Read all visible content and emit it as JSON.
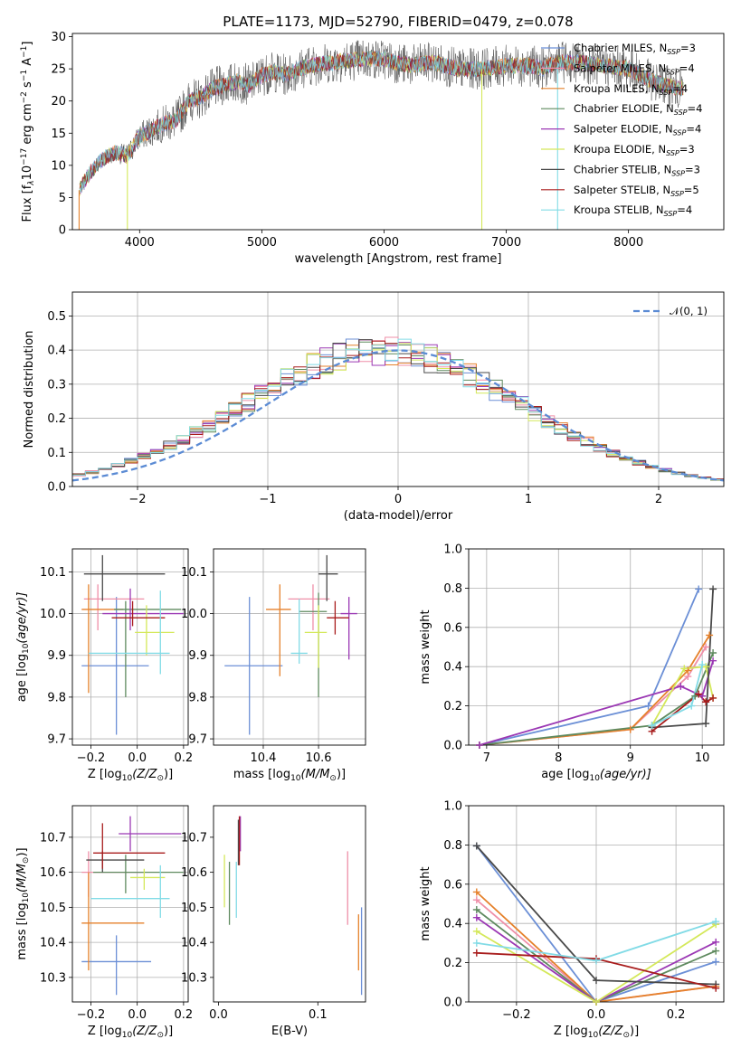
{
  "title": "PLATE=1173, MJD=52790, FIBERID=0479, z=0.078",
  "models": [
    {
      "name": "Chabrier MILES, N",
      "nssp": "=3",
      "color": "#6b8fd6"
    },
    {
      "name": "Salpeter MILES, N",
      "nssp": "=4",
      "color": "#ef8fa8"
    },
    {
      "name": "Kroupa MILES, N",
      "nssp": "=4",
      "color": "#e5812b"
    },
    {
      "name": "Chabrier ELODIE, N",
      "nssp": "=4",
      "color": "#5f8a5f"
    },
    {
      "name": "Salpeter ELODIE, N",
      "nssp": "=4",
      "color": "#9b38b4"
    },
    {
      "name": "Kroupa ELODIE, N",
      "nssp": "=3",
      "color": "#d4e85a"
    },
    {
      "name": "Chabrier STELIB, N",
      "nssp": "=3",
      "color": "#4a4a4a"
    },
    {
      "name": "Salpeter STELIB, N",
      "nssp": "=5",
      "color": "#a81c1c"
    },
    {
      "name": "Kroupa STELIB, N",
      "nssp": "=4",
      "color": "#82dbe6"
    }
  ],
  "nssp_sub": "SSP",
  "chart_data": [
    {
      "id": "spectrum",
      "type": "line",
      "xlabel": "wavelength [Angstrom, rest frame]",
      "ylabel": "Flux [f",
      "ylabel_sub": "λ",
      "ylabel_mid": "10",
      "ylabel_exp1": "−17",
      "ylabel_rest": " erg cm",
      "ylabel_exp2": "−2",
      "ylabel_s": " s",
      "ylabel_exp3": "−1",
      "ylabel_end": " A",
      "ylabel_exp4": "−1",
      "ylabel_close": "]",
      "xlim": [
        3450,
        8780
      ],
      "ylim": [
        0,
        30.5
      ],
      "xticks": [
        4000,
        5000,
        6000,
        7000,
        8000
      ],
      "yticks": [
        0,
        5,
        10,
        15,
        20,
        25,
        30
      ],
      "continuum": [
        [
          3500,
          6
        ],
        [
          3600,
          9
        ],
        [
          3700,
          11
        ],
        [
          3800,
          12
        ],
        [
          3900,
          11.5
        ],
        [
          4000,
          14.5
        ],
        [
          4100,
          15.5
        ],
        [
          4200,
          16.5
        ],
        [
          4300,
          17
        ],
        [
          4400,
          20
        ],
        [
          4500,
          20.5
        ],
        [
          4600,
          22
        ],
        [
          4700,
          22.5
        ],
        [
          4800,
          23
        ],
        [
          4900,
          22.5
        ],
        [
          5000,
          24
        ],
        [
          5100,
          24.5
        ],
        [
          5200,
          24
        ],
        [
          5300,
          25
        ],
        [
          5400,
          25.5
        ],
        [
          5500,
          25.8
        ],
        [
          5600,
          26
        ],
        [
          5800,
          26.5
        ],
        [
          6000,
          26.5
        ],
        [
          6200,
          25.5
        ],
        [
          6400,
          26
        ],
        [
          6600,
          25
        ],
        [
          6800,
          25
        ],
        [
          7000,
          25.5
        ],
        [
          7200,
          25.5
        ],
        [
          7300,
          25
        ],
        [
          7400,
          26
        ],
        [
          7600,
          26
        ],
        [
          7800,
          25.5
        ],
        [
          8000,
          25
        ],
        [
          8200,
          23
        ],
        [
          8400,
          22
        ]
      ]
    },
    {
      "id": "residuals",
      "type": "histogram",
      "xlabel": "(data-model)/error",
      "ylabel": "Normed distribution",
      "xlim": [
        -2.5,
        2.5
      ],
      "ylim": [
        0,
        0.57
      ],
      "xticks": [
        -2,
        -1,
        0,
        1,
        2
      ],
      "yticks": [
        0.0,
        0.1,
        0.2,
        0.3,
        0.4,
        0.5
      ],
      "legend": "𝒩(0, 1)",
      "legend_pos": "top-right",
      "bin_width": 0.1
    },
    {
      "id": "age-vs-Z",
      "type": "scatter",
      "xlabel": "Z [log",
      "xlabel_sub": "10",
      "xlabel_end": "(Z/Z",
      "xlabel_sun": "⊙",
      "xlabel_close": ")]",
      "ylabel": "age  [log",
      "ylabel_sub": "10",
      "ylabel_end": "(age/yr)]",
      "xlim": [
        -0.28,
        0.22
      ],
      "ylim": [
        9.685,
        10.155
      ],
      "xticks": [
        -0.2,
        0.0,
        0.2
      ],
      "yticks": [
        9.7,
        9.8,
        9.9,
        10.0,
        10.1
      ],
      "xtick_labels": [
        "−0.2",
        "0.0",
        "0.2"
      ]
    },
    {
      "id": "age-vs-mass",
      "type": "scatter",
      "xlabel": "mass [log",
      "xlabel_sub": "10",
      "xlabel_end": "(M/M",
      "xlabel_sun": "⊙",
      "xlabel_close": ")]",
      "xlim": [
        10.22,
        10.77
      ],
      "ylim": [
        9.685,
        10.155
      ],
      "xticks": [
        10.4,
        10.6
      ],
      "yticks": [
        9.7,
        9.8,
        9.9,
        10.0,
        10.1
      ]
    },
    {
      "id": "massweight-vs-age",
      "type": "line",
      "xlabel": "age  [log",
      "xlabel_sub": "10",
      "xlabel_end": "(age/yr)]",
      "ylabel": "mass weight",
      "xlim": [
        6.75,
        10.3
      ],
      "ylim": [
        0,
        1
      ],
      "xticks": [
        7,
        8,
        9,
        10
      ],
      "yticks": [
        0.0,
        0.2,
        0.4,
        0.6,
        0.8,
        1.0
      ]
    },
    {
      "id": "mass-vs-Z",
      "type": "scatter",
      "xlabel": "Z [log",
      "xlabel_sub": "10",
      "xlabel_end": "(Z/Z",
      "xlabel_sun": "⊙",
      "xlabel_close": ")]",
      "ylabel": "mass [log",
      "ylabel_sub": "10",
      "ylabel_end": "(M/M",
      "ylabel_sun": "⊙",
      "ylabel_close": ")]",
      "xlim": [
        -0.28,
        0.22
      ],
      "ylim": [
        10.23,
        10.79
      ],
      "xticks": [
        -0.2,
        0.0,
        0.2
      ],
      "yticks": [
        10.3,
        10.4,
        10.5,
        10.6,
        10.7
      ],
      "xtick_labels": [
        "−0.2",
        "0.0",
        "0.2"
      ]
    },
    {
      "id": "mass-vs-ebv",
      "type": "scatter",
      "xlabel": "E(B-V)",
      "xlim": [
        -0.005,
        0.148
      ],
      "ylim": [
        10.23,
        10.79
      ],
      "xticks": [
        0.0,
        0.1
      ],
      "yticks": [
        10.3,
        10.4,
        10.5,
        10.6,
        10.7
      ]
    },
    {
      "id": "massweight-vs-Z",
      "type": "line",
      "xlabel": "Z [log",
      "xlabel_sub": "10",
      "xlabel_end": "(Z/Z",
      "xlabel_sun": "⊙",
      "xlabel_close": ")]",
      "ylabel": "mass weight",
      "xlim": [
        -0.32,
        0.32
      ],
      "ylim": [
        0,
        1
      ],
      "xticks": [
        -0.2,
        0.0,
        0.2
      ],
      "yticks": [
        0.0,
        0.2,
        0.4,
        0.6,
        0.8,
        1.0
      ],
      "xtick_labels": [
        "−0.2",
        "0.0",
        "0.2"
      ]
    }
  ],
  "age_Z_points": [
    {
      "m": 0,
      "x": -0.09,
      "y": 9.875,
      "xe": [
        -0.24,
        0.05
      ],
      "ye": [
        9.71,
        10.04
      ]
    },
    {
      "m": 1,
      "x": -0.17,
      "y": 10.035,
      "xe": [
        -0.23,
        0.03
      ],
      "ye": [
        9.96,
        10.07
      ]
    },
    {
      "m": 2,
      "x": -0.21,
      "y": 10.01,
      "xe": [
        -0.24,
        -0.06
      ],
      "ye": [
        9.81,
        10.07
      ]
    },
    {
      "m": 3,
      "x": -0.05,
      "y": 10.01,
      "xe": [
        -0.1,
        0.19
      ],
      "ye": [
        9.8,
        10.03
      ]
    },
    {
      "m": 4,
      "x": -0.03,
      "y": 10.0,
      "xe": [
        -0.15,
        0.2
      ],
      "ye": [
        9.96,
        10.06
      ]
    },
    {
      "m": 5,
      "x": 0.04,
      "y": 9.955,
      "xe": [
        -0.01,
        0.16
      ],
      "ye": [
        9.9,
        10.02
      ]
    },
    {
      "m": 6,
      "x": -0.15,
      "y": 10.095,
      "xe": [
        -0.23,
        0.12
      ],
      "ye": [
        10.03,
        10.14
      ]
    },
    {
      "m": 7,
      "x": -0.02,
      "y": 9.99,
      "xe": [
        -0.11,
        0.12
      ],
      "ye": [
        9.97,
        10.03
      ]
    },
    {
      "m": 8,
      "x": 0.1,
      "y": 9.905,
      "xe": [
        -0.21,
        0.14
      ],
      "ye": [
        9.855,
        10.055
      ]
    }
  ],
  "age_mass_points": [
    {
      "m": 0,
      "x": 10.35,
      "y": 9.875,
      "xe": [
        10.26,
        10.47
      ],
      "ye": [
        9.71,
        10.04
      ]
    },
    {
      "m": 1,
      "x": 10.58,
      "y": 10.035,
      "xe": [
        10.49,
        10.64
      ],
      "ye": [
        9.96,
        10.07
      ]
    },
    {
      "m": 2,
      "x": 10.46,
      "y": 10.01,
      "xe": [
        10.41,
        10.5
      ],
      "ye": [
        9.85,
        10.07
      ]
    },
    {
      "m": 3,
      "x": 10.6,
      "y": 10.005,
      "xe": [
        10.53,
        10.63
      ],
      "ye": [
        9.8,
        10.05
      ]
    },
    {
      "m": 4,
      "x": 10.71,
      "y": 10.0,
      "xe": [
        10.68,
        10.74
      ],
      "ye": [
        9.89,
        10.04
      ]
    },
    {
      "m": 5,
      "x": 10.6,
      "y": 9.955,
      "xe": [
        10.55,
        10.63
      ],
      "ye": [
        9.87,
        10.02
      ]
    },
    {
      "m": 6,
      "x": 10.63,
      "y": 10.095,
      "xe": [
        10.6,
        10.67
      ],
      "ye": [
        10.03,
        10.14
      ]
    },
    {
      "m": 7,
      "x": 10.66,
      "y": 9.99,
      "xe": [
        10.63,
        10.71
      ],
      "ye": [
        9.95,
        10.03
      ]
    },
    {
      "m": 8,
      "x": 10.53,
      "y": 9.905,
      "xe": [
        10.5,
        10.56
      ],
      "ye": [
        9.88,
        10.035
      ]
    }
  ],
  "mass_Z_points": [
    {
      "m": 0,
      "x": -0.09,
      "y": 10.345,
      "xe": [
        -0.24,
        0.06
      ],
      "ye": [
        10.25,
        10.42
      ]
    },
    {
      "m": 1,
      "x": -0.21,
      "y": 10.6,
      "xe": [
        -0.24,
        0.03
      ],
      "ye": [
        10.53,
        10.66
      ]
    },
    {
      "m": 2,
      "x": -0.21,
      "y": 10.455,
      "xe": [
        -0.24,
        0.03
      ],
      "ye": [
        10.32,
        10.6
      ]
    },
    {
      "m": 3,
      "x": -0.05,
      "y": 10.6,
      "xe": [
        -0.19,
        0.2
      ],
      "ye": [
        10.54,
        10.65
      ]
    },
    {
      "m": 4,
      "x": -0.03,
      "y": 10.71,
      "xe": [
        -0.08,
        0.19
      ],
      "ye": [
        10.66,
        10.76
      ]
    },
    {
      "m": 5,
      "x": 0.03,
      "y": 10.585,
      "xe": [
        -0.03,
        0.12
      ],
      "ye": [
        10.55,
        10.61
      ]
    },
    {
      "m": 6,
      "x": -0.15,
      "y": 10.635,
      "xe": [
        -0.22,
        0.03
      ],
      "ye": [
        10.6,
        10.66
      ]
    },
    {
      "m": 7,
      "x": -0.15,
      "y": 10.655,
      "xe": [
        -0.19,
        0.12
      ],
      "ye": [
        10.61,
        10.74
      ]
    },
    {
      "m": 8,
      "x": 0.1,
      "y": 10.525,
      "xe": [
        -0.2,
        0.14
      ],
      "ye": [
        10.47,
        10.62
      ]
    }
  ],
  "mass_ebv_points": [
    {
      "m": 0,
      "x": 0.144,
      "y": 10.345,
      "xe": [
        0.144,
        0.144
      ],
      "ye": [
        10.25,
        10.5
      ]
    },
    {
      "m": 1,
      "x": 0.13,
      "y": 10.555,
      "xe": [
        0.13,
        0.13
      ],
      "ye": [
        10.45,
        10.66
      ]
    },
    {
      "m": 2,
      "x": 0.141,
      "y": 10.4,
      "xe": [
        0.141,
        0.141
      ],
      "ye": [
        10.32,
        10.48
      ]
    },
    {
      "m": 3,
      "x": 0.011,
      "y": 10.575,
      "xe": [
        0.011,
        0.011
      ],
      "ye": [
        10.45,
        10.63
      ]
    },
    {
      "m": 4,
      "x": 0.022,
      "y": 10.7,
      "xe": [
        0.022,
        0.022
      ],
      "ye": [
        10.66,
        10.76
      ]
    },
    {
      "m": 5,
      "x": 0.006,
      "y": 10.59,
      "xe": [
        0.006,
        0.006
      ],
      "ye": [
        10.5,
        10.65
      ]
    },
    {
      "m": 6,
      "x": 0.02,
      "y": 10.68,
      "xe": [
        0.02,
        0.02
      ],
      "ye": [
        10.62,
        10.75
      ]
    },
    {
      "m": 7,
      "x": 0.021,
      "y": 10.69,
      "xe": [
        0.021,
        0.021
      ],
      "ye": [
        10.62,
        10.76
      ]
    },
    {
      "m": 8,
      "x": 0.018,
      "y": 10.55,
      "xe": [
        0.018,
        0.018
      ],
      "ye": [
        10.47,
        10.63
      ]
    }
  ],
  "mw_age_series": [
    {
      "m": 0,
      "pts": [
        [
          6.9,
          0.0
        ],
        [
          9.25,
          0.2
        ],
        [
          9.95,
          0.795
        ]
      ]
    },
    {
      "m": 1,
      "pts": [
        [
          6.9,
          0.0
        ],
        [
          9.0,
          0.08
        ],
        [
          9.8,
          0.35
        ],
        [
          10.05,
          0.5
        ]
      ]
    },
    {
      "m": 2,
      "pts": [
        [
          6.9,
          0.0
        ],
        [
          9.0,
          0.08
        ],
        [
          9.8,
          0.38
        ],
        [
          10.1,
          0.56
        ]
      ]
    },
    {
      "m": 3,
      "pts": [
        [
          6.9,
          0.0
        ],
        [
          9.3,
          0.1
        ],
        [
          9.9,
          0.25
        ],
        [
          10.15,
          0.47
        ]
      ]
    },
    {
      "m": 4,
      "pts": [
        [
          6.9,
          0.0
        ],
        [
          9.7,
          0.3
        ],
        [
          10.0,
          0.25
        ],
        [
          10.15,
          0.43
        ]
      ]
    },
    {
      "m": 5,
      "pts": [
        [
          9.3,
          0.1
        ],
        [
          9.75,
          0.39
        ],
        [
          10.05,
          0.4
        ],
        [
          10.15,
          0.24
        ]
      ]
    },
    {
      "m": 6,
      "pts": [
        [
          9.3,
          0.09
        ],
        [
          10.05,
          0.11
        ],
        [
          10.15,
          0.795
        ]
      ]
    },
    {
      "m": 7,
      "pts": [
        [
          9.3,
          0.07
        ],
        [
          9.95,
          0.26
        ],
        [
          10.05,
          0.22
        ],
        [
          10.15,
          0.24
        ]
      ]
    },
    {
      "m": 8,
      "pts": [
        [
          9.3,
          0.1
        ],
        [
          9.85,
          0.2
        ],
        [
          10.0,
          0.41
        ]
      ]
    }
  ],
  "mw_Z_series": [
    {
      "m": 0,
      "pts": [
        [
          -0.3,
          0.795
        ],
        [
          0.0,
          0.0
        ],
        [
          0.3,
          0.205
        ]
      ]
    },
    {
      "m": 1,
      "pts": [
        [
          -0.3,
          0.52
        ],
        [
          0.0,
          0.0
        ],
        [
          0.3,
          0.08
        ]
      ]
    },
    {
      "m": 2,
      "pts": [
        [
          -0.3,
          0.56
        ],
        [
          0.0,
          0.0
        ],
        [
          0.3,
          0.08
        ]
      ]
    },
    {
      "m": 3,
      "pts": [
        [
          -0.3,
          0.47
        ],
        [
          0.0,
          0.0
        ],
        [
          0.3,
          0.26
        ]
      ]
    },
    {
      "m": 4,
      "pts": [
        [
          -0.3,
          0.43
        ],
        [
          0.0,
          0.0
        ],
        [
          0.3,
          0.305
        ]
      ]
    },
    {
      "m": 5,
      "pts": [
        [
          -0.3,
          0.36
        ],
        [
          0.0,
          0.0
        ],
        [
          0.3,
          0.395
        ]
      ]
    },
    {
      "m": 6,
      "pts": [
        [
          -0.3,
          0.795
        ],
        [
          0.0,
          0.11
        ],
        [
          0.3,
          0.09
        ]
      ]
    },
    {
      "m": 7,
      "pts": [
        [
          -0.3,
          0.25
        ],
        [
          0.0,
          0.22
        ],
        [
          0.3,
          0.07
        ]
      ]
    },
    {
      "m": 8,
      "pts": [
        [
          -0.3,
          0.3
        ],
        [
          0.0,
          0.21
        ],
        [
          0.3,
          0.41
        ]
      ]
    }
  ]
}
